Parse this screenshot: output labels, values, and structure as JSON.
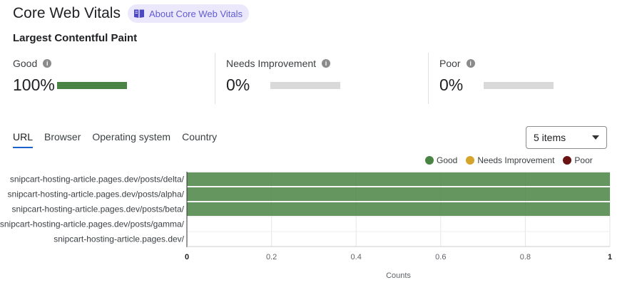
{
  "header": {
    "title": "Core Web Vitals",
    "about_label": "About Core Web Vitals"
  },
  "section": {
    "subtitle": "Largest Contentful Paint"
  },
  "metrics": [
    {
      "label": "Good",
      "value": "100%",
      "fraction": 1.0
    },
    {
      "label": "Needs Improvement",
      "value": "0%",
      "fraction": 0.0
    },
    {
      "label": "Poor",
      "value": "0%",
      "fraction": 0.0
    }
  ],
  "tabs": [
    {
      "label": "URL",
      "active": true
    },
    {
      "label": "Browser",
      "active": false
    },
    {
      "label": "Operating system",
      "active": false
    },
    {
      "label": "Country",
      "active": false
    }
  ],
  "items_select": {
    "value": "5 items"
  },
  "colors": {
    "good": "#4a8444",
    "needs_improvement": "#d4a42b",
    "poor": "#6b1212",
    "accent": "#1a62c9"
  },
  "chart_data": {
    "type": "bar",
    "orientation": "horizontal",
    "stacked": true,
    "categories": [
      "snipcart-hosting-article.pages.dev/posts/delta/",
      "snipcart-hosting-article.pages.dev/posts/alpha/",
      "snipcart-hosting-article.pages.dev/posts/beta/",
      "snipcart-hosting-article.pages.dev/posts/gamma/",
      "snipcart-hosting-article.pages.dev/"
    ],
    "series": [
      {
        "name": "Good",
        "values": [
          1,
          1,
          1,
          0,
          0
        ]
      },
      {
        "name": "Needs Improvement",
        "values": [
          0,
          0,
          0,
          0,
          0
        ]
      },
      {
        "name": "Poor",
        "values": [
          0,
          0,
          0,
          0,
          0
        ]
      }
    ],
    "xlabel": "Counts",
    "xlim": [
      0,
      1
    ],
    "xticks": [
      "0",
      "0.2",
      "0.4",
      "0.6",
      "0.8",
      "1"
    ],
    "grid": true,
    "legend": "top-right"
  }
}
